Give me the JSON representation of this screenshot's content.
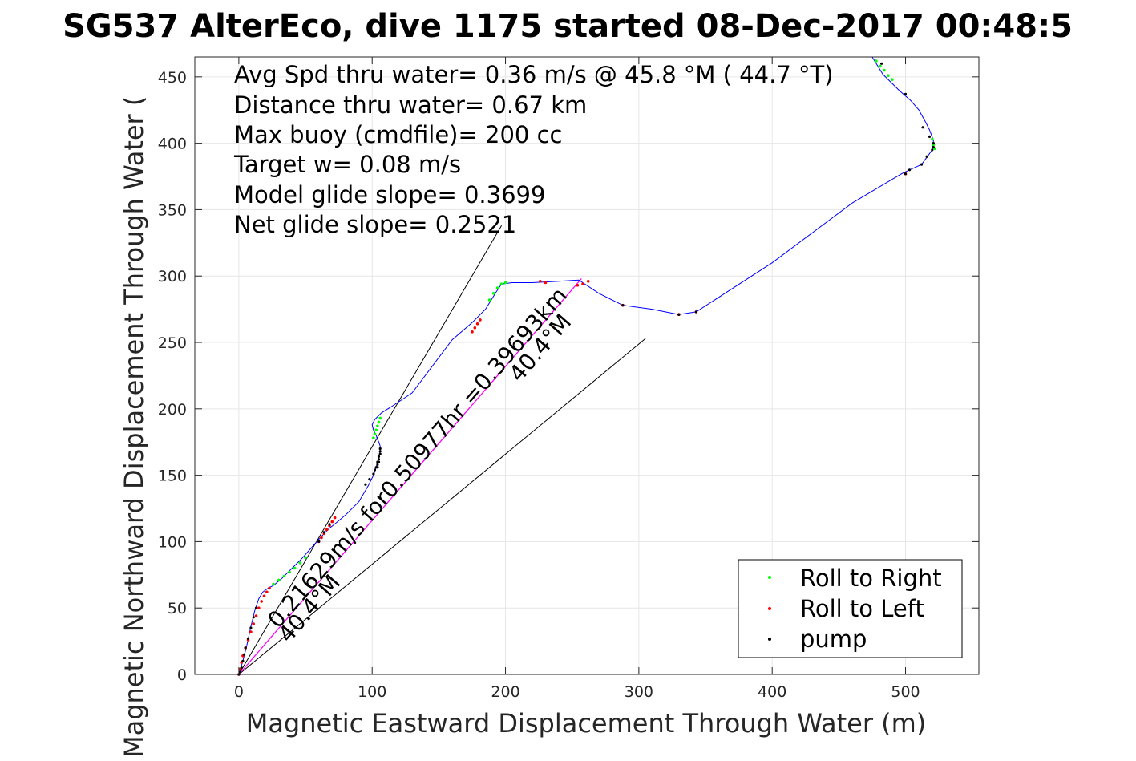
{
  "chart_data": {
    "type": "scatter",
    "title": "SG537 AlterEco, dive 1175 started 08-Dec-2017 00:48:5",
    "xlabel": "Magnetic Eastward Displacement Through Water (m)",
    "ylabel": "Magnetic Northward Displacement Through Water (",
    "xlim": [
      -33,
      555
    ],
    "ylim": [
      0,
      465
    ],
    "grid": true,
    "x_ticks": [
      0,
      100,
      200,
      300,
      400,
      500
    ],
    "y_ticks": [
      0,
      50,
      100,
      150,
      200,
      250,
      300,
      350,
      400,
      450
    ],
    "stats_text": [
      "Avg Spd thru water=  0.36 m/s @  45.8 °M ( 44.7 °T)",
      "Distance thru water=  0.67 km",
      "Max buoy (cmdfile)= 200 cc",
      "Target w= 0.08 m/s",
      "Model glide slope= 0.3699",
      "Net glide slope= 0.2521"
    ],
    "annotations": [
      "0.21629m/s for0.50977hr =0.39693km",
      "40.4°M",
      "40.4°M"
    ],
    "legend": {
      "placement": "bottom-right",
      "entries": [
        {
          "name": "Roll to Right",
          "color": "#00ff00"
        },
        {
          "name": "Roll to Left",
          "color": "#ff0000"
        },
        {
          "name": "pump",
          "color": "#000000"
        }
      ]
    },
    "series": [
      {
        "name": "track",
        "color": "#0000ff",
        "style": "line",
        "x": [
          0,
          3,
          6,
          9,
          12,
          15,
          18,
          22,
          26,
          32,
          40,
          48,
          55,
          62,
          68,
          74,
          80,
          90,
          97,
          101,
          103,
          104,
          105,
          106,
          106,
          105,
          104,
          103,
          101,
          100,
          102,
          107,
          115,
          130,
          145,
          160,
          175,
          185,
          193,
          197,
          205,
          220,
          240,
          255,
          270,
          288,
          310,
          330,
          343,
          400,
          460,
          497,
          503,
          512,
          520,
          521,
          518,
          515,
          510,
          504,
          495,
          483,
          475
        ],
        "y": [
          0,
          10,
          22,
          36,
          48,
          57,
          62,
          65,
          67,
          72,
          80,
          88,
          96,
          104,
          110,
          115,
          120,
          130,
          142,
          150,
          156,
          160,
          164,
          168,
          172,
          175,
          177,
          180,
          184,
          188,
          192,
          197,
          202,
          212,
          232,
          252,
          265,
          275,
          288,
          294,
          295,
          295,
          296,
          297,
          287,
          278,
          275,
          271,
          273,
          310,
          355,
          377,
          380,
          384,
          395,
          402,
          410,
          416,
          425,
          432,
          440,
          452,
          465
        ]
      },
      {
        "name": "Roll to Right",
        "color": "#00ff00",
        "style": "points",
        "x": [
          26,
          30,
          34,
          38,
          42,
          46,
          50,
          101,
          102,
          103,
          104,
          105,
          106,
          188,
          191,
          194,
          197,
          200,
          478,
          481,
          484,
          487,
          490,
          520,
          521,
          522
        ],
        "y": [
          68,
          71,
          74,
          77,
          80,
          84,
          88,
          178,
          181,
          184,
          187,
          190,
          193,
          282,
          287,
          291,
          294,
          295,
          462,
          458,
          455,
          451,
          448,
          403,
          399,
          396
        ]
      },
      {
        "name": "Roll to Left",
        "color": "#ff0000",
        "style": "points",
        "x": [
          0,
          1,
          2,
          3,
          5,
          7,
          9,
          11,
          13,
          15,
          17,
          19,
          21,
          23,
          60,
          62,
          64,
          66,
          68,
          70,
          72,
          175,
          177,
          179,
          181,
          226,
          230,
          254,
          258,
          262,
          288,
          330,
          343,
          500
        ],
        "y": [
          0,
          4,
          9,
          14,
          20,
          26,
          32,
          38,
          44,
          50,
          55,
          59,
          62,
          65,
          100,
          103,
          106,
          109,
          112,
          115,
          118,
          258,
          261,
          264,
          267,
          296,
          295,
          293,
          294,
          296,
          278,
          271,
          273,
          377
        ]
      },
      {
        "name": "pump",
        "color": "#000000",
        "style": "points",
        "x": [
          0,
          1,
          2,
          3,
          4,
          5,
          7,
          9,
          11,
          13,
          60,
          64,
          68,
          95,
          98,
          101,
          102,
          103,
          104,
          104,
          105,
          105,
          106,
          106,
          106,
          105,
          104,
          288,
          330,
          343,
          500,
          503,
          512,
          516,
          520,
          521,
          521,
          518,
          513,
          500,
          482
        ],
        "y": [
          0,
          2,
          5,
          10,
          15,
          20,
          27,
          35,
          43,
          50,
          100,
          107,
          113,
          143,
          147,
          151,
          154,
          156,
          158,
          160,
          162,
          164,
          166,
          168,
          170,
          160,
          156,
          278,
          271,
          273,
          377,
          380,
          384,
          390,
          395,
          397,
          400,
          405,
          412,
          437,
          460
        ]
      },
      {
        "name": "net-track",
        "color": "#ff00ff",
        "style": "line",
        "x": [
          0,
          257
        ],
        "y": [
          0,
          298
        ]
      },
      {
        "name": "glide-cone-upper",
        "color": "#000000",
        "style": "line",
        "x": [
          0,
          197
        ],
        "y": [
          0,
          338
        ]
      },
      {
        "name": "glide-cone-lower",
        "color": "#000000",
        "style": "line",
        "x": [
          0,
          305
        ],
        "y": [
          0,
          253
        ]
      }
    ]
  }
}
